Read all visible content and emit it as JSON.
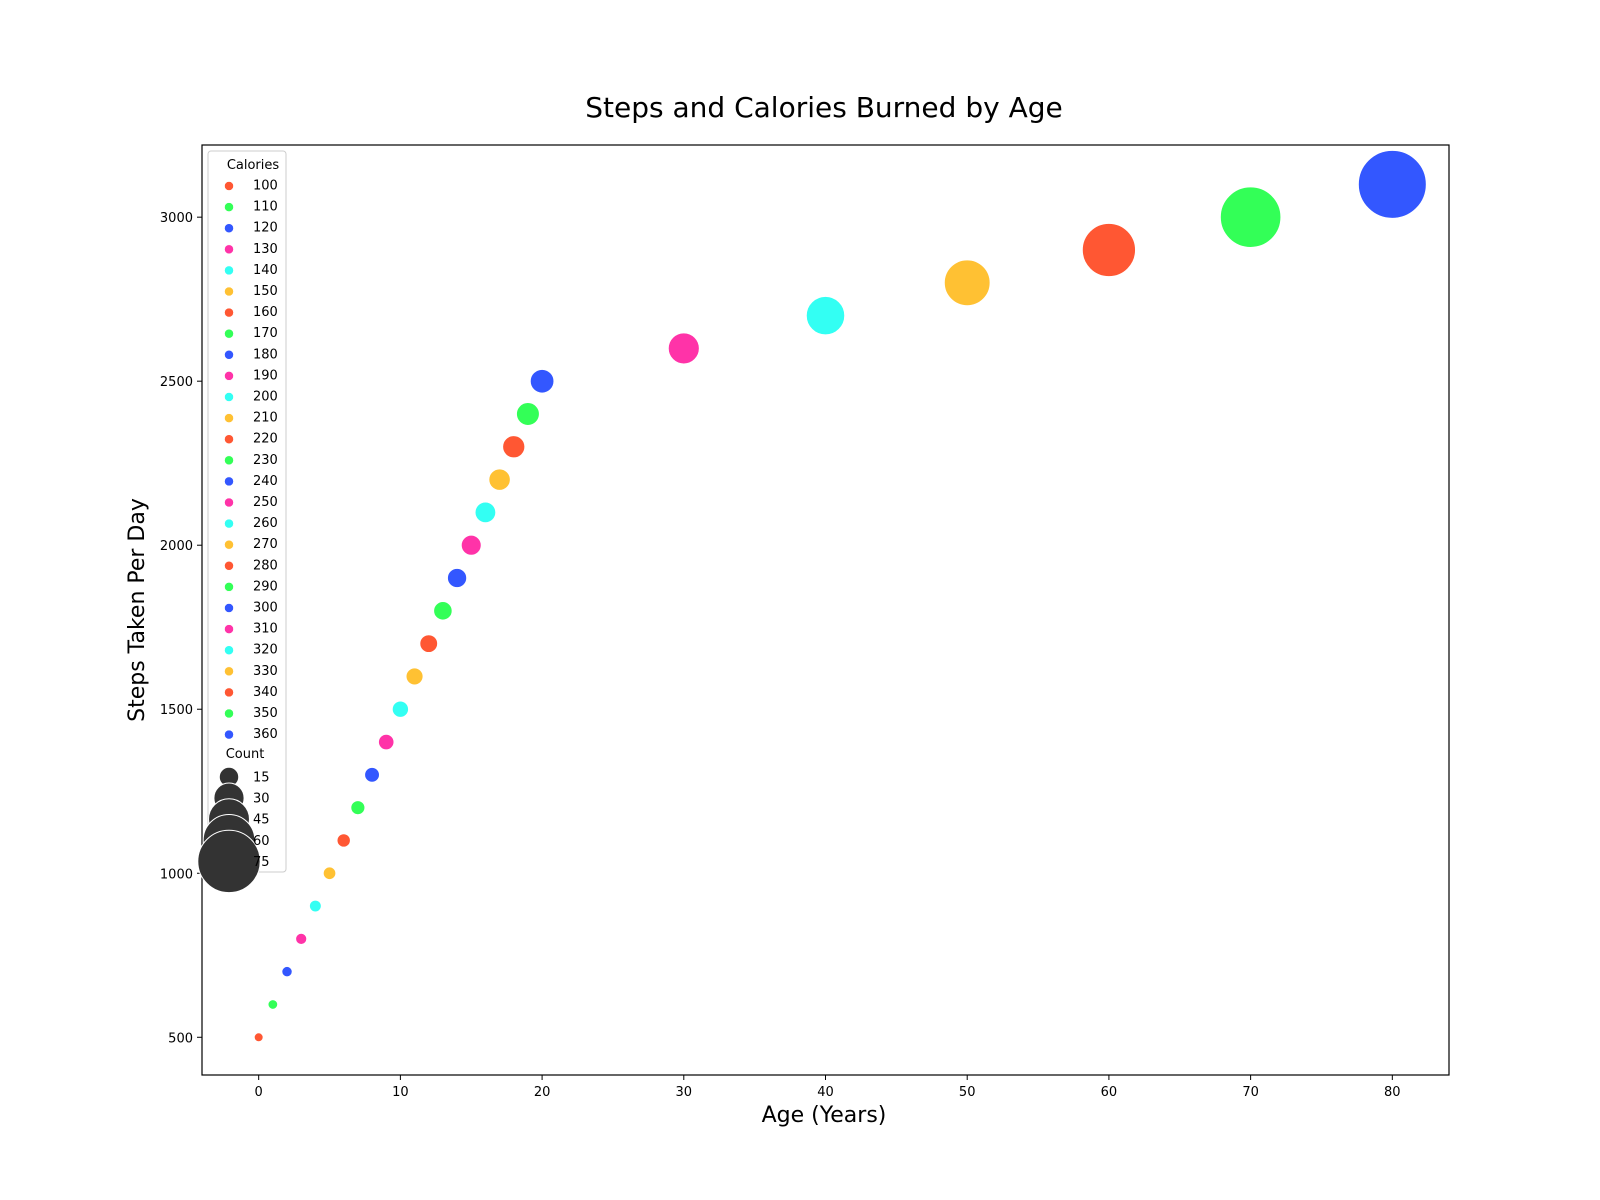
{
  "chart_data": {
    "type": "scatter",
    "title": "Steps and Calories Burned by Age",
    "xlabel": "Age (Years)",
    "ylabel": "Steps Taken Per Day",
    "xlim": [
      -4,
      84
    ],
    "ylim": [
      385,
      3220
    ],
    "xticks": [
      0,
      10,
      20,
      30,
      40,
      50,
      60,
      70,
      80
    ],
    "yticks": [
      500,
      1000,
      1500,
      2000,
      2500,
      3000
    ],
    "grid": false,
    "legend_position": "upper-left",
    "palette": [
      "#FF5733",
      "#33FF57",
      "#3357FF",
      "#FF33A8",
      "#33FFF3",
      "#FFC133"
    ],
    "hue_legend_title": "Calories",
    "size_legend_title": "Count",
    "size_legend": [
      15,
      30,
      45,
      60,
      75
    ],
    "size_range": [
      0,
      80
    ],
    "points": [
      {
        "age": 0,
        "steps": 500,
        "calories": 100,
        "count": 0
      },
      {
        "age": 1,
        "steps": 600,
        "calories": 110,
        "count": 1
      },
      {
        "age": 2,
        "steps": 700,
        "calories": 120,
        "count": 2
      },
      {
        "age": 3,
        "steps": 800,
        "calories": 130,
        "count": 3
      },
      {
        "age": 4,
        "steps": 900,
        "calories": 140,
        "count": 4
      },
      {
        "age": 5,
        "steps": 1000,
        "calories": 150,
        "count": 5
      },
      {
        "age": 6,
        "steps": 1100,
        "calories": 160,
        "count": 6
      },
      {
        "age": 7,
        "steps": 1200,
        "calories": 170,
        "count": 7
      },
      {
        "age": 8,
        "steps": 1300,
        "calories": 180,
        "count": 8
      },
      {
        "age": 9,
        "steps": 1400,
        "calories": 190,
        "count": 9
      },
      {
        "age": 10,
        "steps": 1500,
        "calories": 200,
        "count": 10
      },
      {
        "age": 11,
        "steps": 1600,
        "calories": 210,
        "count": 11
      },
      {
        "age": 12,
        "steps": 1700,
        "calories": 220,
        "count": 12
      },
      {
        "age": 13,
        "steps": 1800,
        "calories": 230,
        "count": 13
      },
      {
        "age": 14,
        "steps": 1900,
        "calories": 240,
        "count": 14
      },
      {
        "age": 15,
        "steps": 2000,
        "calories": 250,
        "count": 15
      },
      {
        "age": 16,
        "steps": 2100,
        "calories": 260,
        "count": 16
      },
      {
        "age": 17,
        "steps": 2200,
        "calories": 270,
        "count": 17
      },
      {
        "age": 18,
        "steps": 2300,
        "calories": 280,
        "count": 18
      },
      {
        "age": 19,
        "steps": 2400,
        "calories": 290,
        "count": 19
      },
      {
        "age": 20,
        "steps": 2500,
        "calories": 300,
        "count": 20
      },
      {
        "age": 30,
        "steps": 2600,
        "calories": 310,
        "count": 30
      },
      {
        "age": 40,
        "steps": 2700,
        "calories": 320,
        "count": 40
      },
      {
        "age": 50,
        "steps": 2800,
        "calories": 330,
        "count": 50
      },
      {
        "age": 60,
        "steps": 2900,
        "calories": 340,
        "count": 60
      },
      {
        "age": 70,
        "steps": 3000,
        "calories": 350,
        "count": 70
      },
      {
        "age": 80,
        "steps": 3100,
        "calories": 360,
        "count": 80
      }
    ]
  }
}
